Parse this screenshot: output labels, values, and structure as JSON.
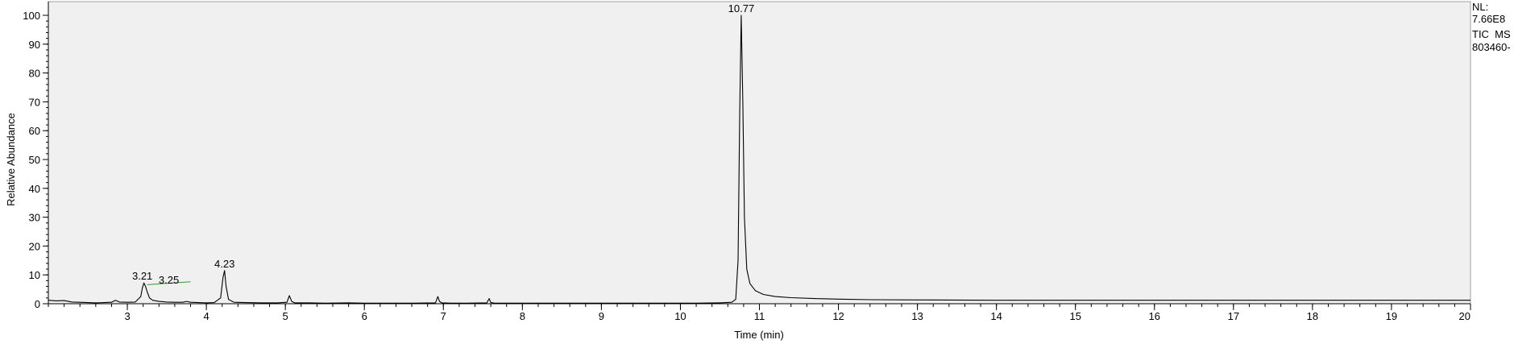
{
  "chart_data": {
    "type": "line",
    "xlabel": "Time (min)",
    "ylabel": "Relative Abundance",
    "xlim": [
      2.0,
      20.0
    ],
    "ylim": [
      0,
      100
    ],
    "x_ticks": [
      3,
      4,
      5,
      6,
      7,
      8,
      9,
      10,
      11,
      12,
      13,
      14,
      15,
      16,
      17,
      18,
      19,
      20
    ],
    "x_minor_step": 0.2,
    "y_ticks": [
      0,
      10,
      20,
      30,
      40,
      50,
      60,
      70,
      80,
      90,
      100
    ],
    "y_minor_step": 2,
    "grid": false,
    "series": [
      {
        "x": [
          2.0,
          2.1,
          2.2,
          2.3,
          2.4,
          2.5,
          2.6,
          2.7,
          2.8,
          2.85,
          2.9,
          3.0,
          3.1,
          3.17,
          3.19,
          3.21,
          3.23,
          3.25,
          3.28,
          3.32,
          3.4,
          3.5,
          3.6,
          3.7,
          3.75,
          3.8,
          3.9,
          4.0,
          4.1,
          4.18,
          4.21,
          4.23,
          4.25,
          4.28,
          4.35,
          4.5,
          4.7,
          4.9,
          5.02,
          5.05,
          5.08,
          5.12,
          5.3,
          5.5,
          5.8,
          6.0,
          6.3,
          6.6,
          6.9,
          6.93,
          6.95,
          6.98,
          7.1,
          7.3,
          7.55,
          7.58,
          7.6,
          7.65,
          7.8,
          8.2,
          8.6,
          9.0,
          9.4,
          9.8,
          10.2,
          10.5,
          10.65,
          10.7,
          10.73,
          10.75,
          10.77,
          10.79,
          10.81,
          10.84,
          10.88,
          10.95,
          11.05,
          11.2,
          11.4,
          11.7,
          12.0,
          12.4,
          13.0,
          14.0,
          15.0,
          16.0,
          17.0,
          18.0,
          19.0,
          20.0
        ],
        "y": [
          1.2,
          1.0,
          1.1,
          0.6,
          0.5,
          0.4,
          0.3,
          0.4,
          0.5,
          1.2,
          0.6,
          0.5,
          0.6,
          2.5,
          5.5,
          7.2,
          6.0,
          4.2,
          2.0,
          1.2,
          0.8,
          0.6,
          0.5,
          0.5,
          0.8,
          0.5,
          0.4,
          0.3,
          0.4,
          2.0,
          9.0,
          11.5,
          6.0,
          1.5,
          0.5,
          0.4,
          0.3,
          0.3,
          0.5,
          2.8,
          0.8,
          0.3,
          0.3,
          0.2,
          0.3,
          0.2,
          0.2,
          0.2,
          0.3,
          2.5,
          0.8,
          0.3,
          0.2,
          0.2,
          0.3,
          1.8,
          0.4,
          0.2,
          0.2,
          0.2,
          0.2,
          0.2,
          0.2,
          0.2,
          0.2,
          0.3,
          0.5,
          1.5,
          15.0,
          65.0,
          100.0,
          70.0,
          30.0,
          12.0,
          7.0,
          4.5,
          3.2,
          2.5,
          2.1,
          1.8,
          1.6,
          1.4,
          1.3,
          1.2,
          1.2,
          1.2,
          1.2,
          1.2,
          1.2,
          1.2
        ]
      }
    ],
    "annotations": [
      {
        "label": "3.21",
        "x": 3.21,
        "y": 7.2
      },
      {
        "label": "4.23",
        "x": 4.23,
        "y": 11.5
      },
      {
        "label": "10.77",
        "x": 10.77,
        "y": 100.0
      }
    ],
    "integration_marker": {
      "label": "3.25",
      "x1": 3.25,
      "y1": 6.6,
      "x2": 3.8,
      "y2": 7.6,
      "color": "#2ca02c"
    },
    "trace_color": "#000000",
    "plot_background": "#f0f0f0"
  },
  "info": {
    "nl_label": "NL:",
    "nl_value": "7.66E8",
    "scan_label": "TIC  MS",
    "file_label": "803460-"
  }
}
